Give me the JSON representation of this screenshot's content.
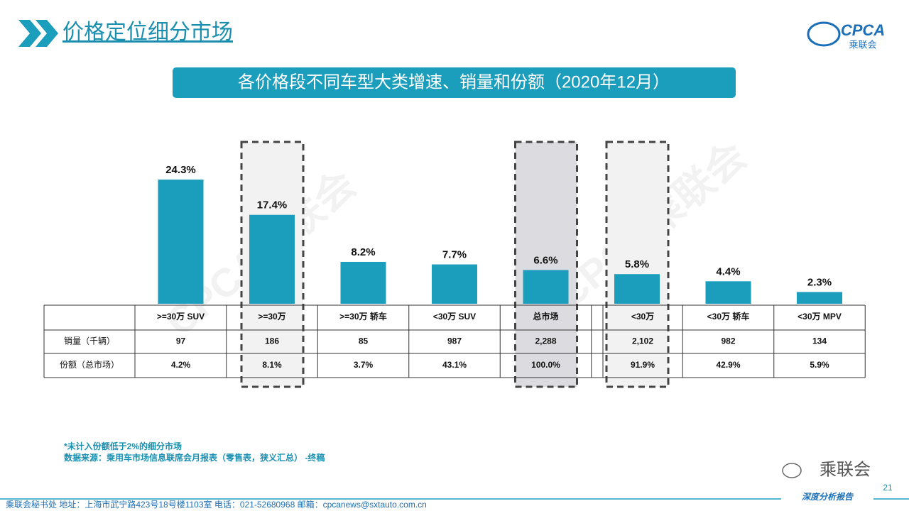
{
  "header": {
    "title": "价格定位细分市场",
    "logo_text": "CPCA",
    "logo_subtitle": "乘联会"
  },
  "chart_data": {
    "type": "bar",
    "title": "各价格段不同车型大类增速、销量和份额（2020年12月）",
    "categories": [
      ">=30万 SUV",
      ">=30万",
      ">=30万 轿车",
      "<30万 SUV",
      "总市场",
      "<30万",
      "<30万 轿车",
      "<30万 MPV"
    ],
    "values": [
      24.3,
      17.4,
      8.2,
      7.7,
      6.6,
      5.8,
      4.4,
      2.3
    ],
    "value_labels": [
      "24.3%",
      "17.4%",
      "8.2%",
      "7.7%",
      "6.6%",
      "5.8%",
      "4.4%",
      "2.3%"
    ],
    "color": "#1b9dbc"
  },
  "table": {
    "row_headers": [
      "销量（千辆）",
      "份额（总市场）"
    ],
    "rows": [
      [
        "97",
        "186",
        "85",
        "987",
        "2,288",
        "2,102",
        "982",
        "134"
      ],
      [
        "4.2%",
        "8.1%",
        "3.7%",
        "43.1%",
        "100.0%",
        "91.9%",
        "42.9%",
        "5.9%"
      ]
    ]
  },
  "notes": [
    "*未计入份额低于2%的细分市场",
    "数据来源：乘用车市场信息联席会月报表（零售表，狭义汇总）   -终稿"
  ],
  "watermark": "CPCA乘联会",
  "footer": {
    "contact": "乘联会秘书处   地址：上海市武宁路423号18号楼1103室    电话：021-52680968     邮箱：cpcanews@sxtauto.com.cn",
    "wechat": "乘联会",
    "tag": "深度分析报告",
    "page": "21"
  }
}
